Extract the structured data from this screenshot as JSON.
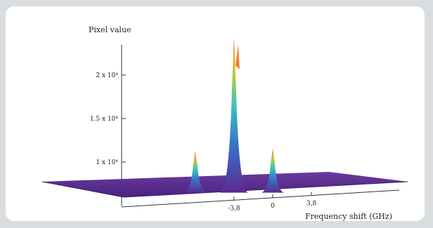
{
  "chart_data": {
    "type": "area",
    "title": "",
    "xlabel": "Frequency shift (GHz)",
    "ylabel": "Pixel value",
    "x_ticks": [
      {
        "value": -3.8,
        "label": "-3,8"
      },
      {
        "value": 0,
        "label": "0"
      },
      {
        "value": 3.8,
        "label": "3,8"
      }
    ],
    "y_ticks": [
      {
        "value": 10000,
        "label": "1 x 10⁴"
      },
      {
        "value": 15000,
        "label": "1.5 x 10⁴"
      },
      {
        "value": 20000,
        "label": "2 x 10⁴"
      }
    ],
    "baseline": 6800,
    "peaks": [
      {
        "x": -7.6,
        "value": 11200
      },
      {
        "x": -3.8,
        "value": 24300
      },
      {
        "x": 0,
        "value": 11500
      }
    ],
    "colors": {
      "low": "#5a2a8e",
      "mid": "#3aa0c8",
      "high": "#e8402a"
    },
    "grid": false
  }
}
